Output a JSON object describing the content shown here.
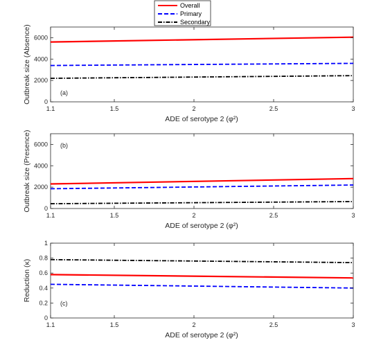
{
  "legend": {
    "entries": [
      {
        "name": "Overall",
        "color": "#ff0000",
        "style": "solid"
      },
      {
        "name": "Primary",
        "color": "#0000ff",
        "style": "dashed"
      },
      {
        "name": "Secondary",
        "color": "#000000",
        "style": "dashdot"
      }
    ],
    "placement": "top-center"
  },
  "chart_data": [
    {
      "type": "line",
      "panel_label": "(a)",
      "xlabel": "ADE of serotype 2 (φ²)",
      "ylabel": "Outbreak size (Absence)",
      "xlim": [
        1.1,
        3
      ],
      "ylim": [
        0,
        7000
      ],
      "xticks": [
        1.1,
        1.5,
        2,
        2.5,
        3
      ],
      "yticks": [
        0,
        2000,
        4000,
        6000
      ],
      "grid": false,
      "x": [
        1.1,
        3
      ],
      "series": [
        {
          "name": "Overall",
          "values": [
            5600,
            6050
          ]
        },
        {
          "name": "Primary",
          "values": [
            3400,
            3600
          ]
        },
        {
          "name": "Secondary",
          "values": [
            2200,
            2450
          ]
        }
      ]
    },
    {
      "type": "line",
      "panel_label": "(b)",
      "xlabel": "ADE of serotype 2 (φ²)",
      "ylabel": "Outbreak size (Presence)",
      "xlim": [
        1.1,
        3
      ],
      "ylim": [
        0,
        7000
      ],
      "xticks": [
        1.1,
        1.5,
        2,
        2.5,
        3
      ],
      "yticks": [
        0,
        2000,
        4000,
        6000
      ],
      "grid": false,
      "x": [
        1.1,
        3
      ],
      "series": [
        {
          "name": "Overall",
          "values": [
            2300,
            2800
          ]
        },
        {
          "name": "Primary",
          "values": [
            1850,
            2200
          ]
        },
        {
          "name": "Secondary",
          "values": [
            450,
            650
          ]
        }
      ]
    },
    {
      "type": "line",
      "panel_label": "(c)",
      "xlabel": "ADE of serotype 2 (φ²)",
      "ylabel": "Reduction (κ)",
      "xlim": [
        1.1,
        3
      ],
      "ylim": [
        0,
        1
      ],
      "xticks": [
        1.1,
        1.5,
        2,
        2.5,
        3
      ],
      "yticks": [
        0,
        0.2,
        0.4,
        0.6,
        0.8,
        1
      ],
      "grid": false,
      "x": [
        1.1,
        3
      ],
      "series": [
        {
          "name": "Overall",
          "values": [
            0.58,
            0.535
          ]
        },
        {
          "name": "Primary",
          "values": [
            0.45,
            0.4
          ]
        },
        {
          "name": "Secondary",
          "values": [
            0.78,
            0.74
          ]
        }
      ]
    }
  ]
}
